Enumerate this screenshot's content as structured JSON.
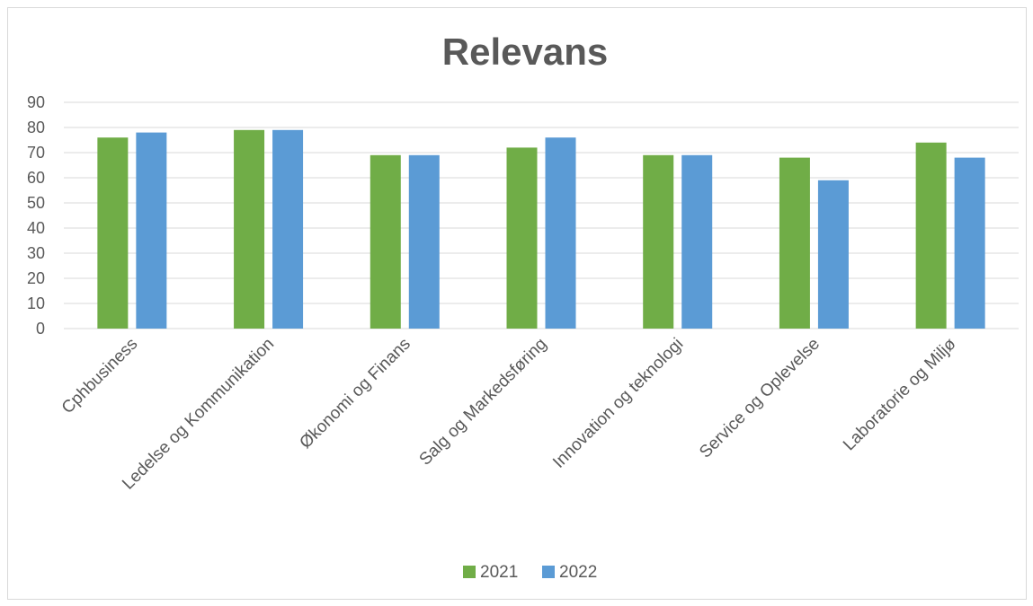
{
  "chart_data": {
    "type": "bar",
    "title": "Relevans",
    "xlabel": "",
    "ylabel": "",
    "categories": [
      "Cphbusiness",
      "Ledelse og Kommunikation",
      "Økonomi og Finans",
      "Salg og Markedsføring",
      "Innovation og teknologi",
      "Service og Oplevelse",
      "Laboratorie og Miljø"
    ],
    "series": [
      {
        "name": "2021",
        "color": "#70ad47",
        "values": [
          76,
          79,
          69,
          72,
          69,
          68,
          74
        ]
      },
      {
        "name": "2022",
        "color": "#5b9bd5",
        "values": [
          78,
          79,
          69,
          76,
          69,
          59,
          68
        ]
      }
    ],
    "ylim": [
      0,
      90
    ],
    "yticks": [
      0,
      10,
      20,
      30,
      40,
      50,
      60,
      70,
      80,
      90
    ],
    "grid": true,
    "legend": "bottom"
  }
}
